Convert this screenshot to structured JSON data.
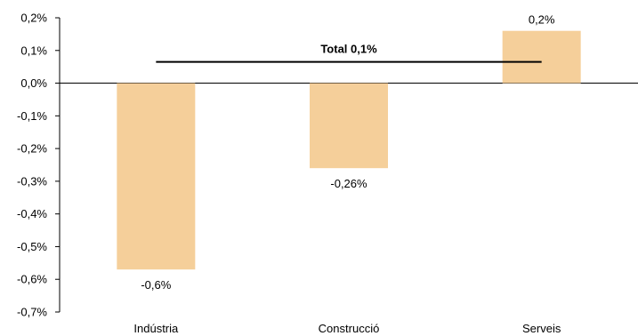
{
  "chart_data": {
    "type": "bar",
    "categories": [
      "Indústria",
      "Construcció",
      "Serveis"
    ],
    "values": [
      -0.57,
      -0.26,
      0.16
    ],
    "data_labels": [
      "-0,6%",
      "-0,26%",
      "0,2%"
    ],
    "ylim": [
      -0.7,
      0.2
    ],
    "y_ticks": [
      0.2,
      0.1,
      0.0,
      -0.1,
      -0.2,
      -0.3,
      -0.4,
      -0.5,
      -0.6,
      -0.7
    ],
    "y_tick_labels": [
      "0,2%",
      "0,1%",
      "0,0%",
      "-0,1%",
      "-0,2%",
      "-0,3%",
      "-0,4%",
      "-0,5%",
      "-0,6%",
      "-0,7%"
    ],
    "reference_line": {
      "value": 0.065,
      "label": "Total 0,1%"
    },
    "grid": false,
    "legend": "none",
    "colors": {
      "bar": "#F5CF9A",
      "line": "#000000",
      "axis": "#000000"
    }
  }
}
